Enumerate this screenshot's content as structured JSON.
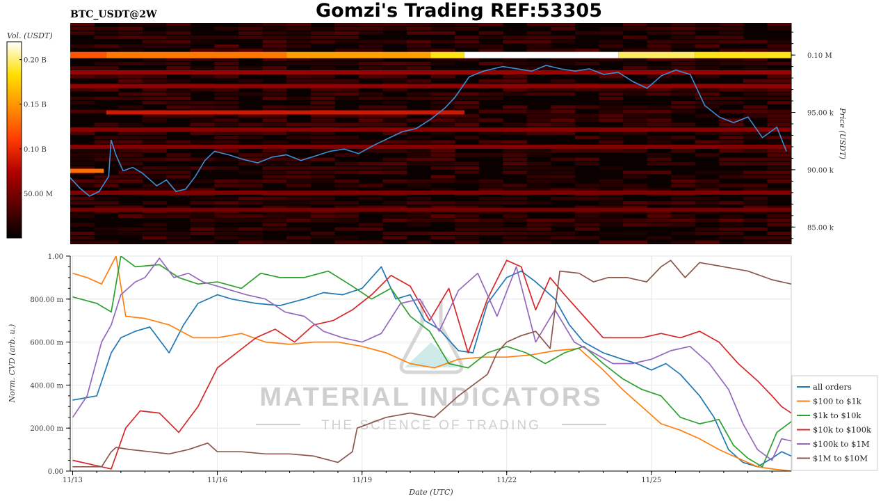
{
  "title": "Gomzi's Trading REF:53305",
  "symbol_label": "BTC_USDT@2W",
  "watermark": {
    "main": "MATERIAL INDICATORS",
    "sub": "THE SCIENCE OF TRADING"
  },
  "colors": {
    "heatmap_base": "#000000",
    "price_line": "#3b8fd6",
    "colorbar_stops": [
      "#000000",
      "#5a0000",
      "#b00000",
      "#ff3a00",
      "#ff9000",
      "#ffe000",
      "#ffffff"
    ]
  },
  "chart_data": [
    {
      "type": "heatmap",
      "colorbar_label": "Vol. (USDT)",
      "colorbar_ticks": [
        "0.20 B",
        "0.15 B",
        "0.10 B",
        "50.00 M"
      ],
      "colorbar_values": [
        200000000,
        150000000,
        100000000,
        50000000
      ],
      "colorbar_range": [
        0,
        220000000
      ],
      "ylabel": "Price (USDT)",
      "ylim": [
        83500,
        102800
      ],
      "y_ticks": [
        "0.10 M",
        "95.00 k",
        "90.00 k",
        "85.00 k"
      ],
      "y_tick_values": [
        100000,
        95000,
        90000,
        85000
      ],
      "xlim": [
        0,
        15
      ],
      "bands": [
        {
          "price": 100000,
          "segments": [
            [
              0,
              0.75,
              0.55
            ],
            [
              0.75,
              4.5,
              0.62
            ],
            [
              4.5,
              7.5,
              0.7
            ],
            [
              7.5,
              8.2,
              0.85
            ],
            [
              8.2,
              11.4,
              1.0
            ],
            [
              11.4,
              13.0,
              0.9
            ],
            [
              13.0,
              15,
              0.85
            ]
          ]
        },
        {
          "price": 95000,
          "segments": [
            [
              0.75,
              8.2,
              0.4
            ]
          ]
        },
        {
          "price": 89900,
          "segments": [
            [
              0,
              0.7,
              0.6
            ]
          ]
        },
        {
          "price": 98500,
          "segments": [
            [
              0,
              15,
              0.3
            ]
          ]
        },
        {
          "price": 97300,
          "segments": [
            [
              0,
              15,
              0.28
            ]
          ]
        },
        {
          "price": 93500,
          "segments": [
            [
              0,
              15,
              0.26
            ]
          ]
        },
        {
          "price": 92000,
          "segments": [
            [
              0,
              15,
              0.25
            ]
          ]
        },
        {
          "price": 88000,
          "segments": [
            [
              0,
              15,
              0.24
            ]
          ]
        },
        {
          "price": 86500,
          "segments": [
            [
              0,
              15,
              0.22
            ]
          ]
        }
      ],
      "price_series": {
        "name": "price",
        "x": [
          0,
          0.2,
          0.4,
          0.6,
          0.8,
          0.85,
          0.95,
          1.1,
          1.3,
          1.5,
          1.8,
          2.0,
          2.2,
          2.4,
          2.6,
          2.8,
          3.0,
          3.3,
          3.6,
          3.9,
          4.2,
          4.5,
          4.8,
          5.1,
          5.4,
          5.7,
          6.0,
          6.3,
          6.6,
          6.9,
          7.2,
          7.5,
          7.8,
          8.0,
          8.3,
          8.6,
          9.0,
          9.3,
          9.6,
          9.9,
          10.2,
          10.5,
          10.8,
          11.1,
          11.4,
          11.7,
          12.0,
          12.3,
          12.6,
          12.9,
          13.2,
          13.5,
          13.8,
          14.1,
          14.4,
          14.7,
          14.9
        ],
        "y": [
          89300,
          88400,
          87700,
          88100,
          89400,
          92600,
          91300,
          89900,
          90200,
          89700,
          88600,
          89100,
          88100,
          88300,
          89400,
          90800,
          91600,
          91300,
          90900,
          90600,
          91100,
          91300,
          90800,
          91200,
          91600,
          91800,
          91400,
          92100,
          92700,
          93300,
          93600,
          94400,
          95400,
          96300,
          98100,
          98600,
          99000,
          98800,
          98600,
          99100,
          98800,
          98600,
          98800,
          98300,
          98500,
          97700,
          97100,
          98200,
          98700,
          98300,
          95600,
          94600,
          94100,
          94600,
          92800,
          93700,
          91600
        ]
      }
    },
    {
      "type": "line",
      "ylabel": "Norm. CVD (arb. u.)",
      "xlabel": "Date (UTC)",
      "ylim": [
        0,
        1
      ],
      "y_ticks": [
        "1.00",
        "800.00 m",
        "600.00 m",
        "400.00 m",
        "200.00 m",
        "0.00"
      ],
      "y_tick_values": [
        1.0,
        0.8,
        0.6,
        0.4,
        0.2,
        0.0
      ],
      "x_ticks": [
        "11/13",
        "11/16",
        "11/19",
        "11/22",
        "11/25"
      ],
      "x_tick_values": [
        0,
        3,
        6,
        9,
        12
      ],
      "xlim": [
        -0.05,
        14.9
      ],
      "grid": true,
      "legend_position": "right",
      "series": [
        {
          "name": "all orders",
          "color": "#1f77b4",
          "x": [
            0,
            0.5,
            0.8,
            1.0,
            1.3,
            1.6,
            2.0,
            2.3,
            2.6,
            3.0,
            3.3,
            3.8,
            4.3,
            4.8,
            5.2,
            5.6,
            6.0,
            6.4,
            6.7,
            7.0,
            7.3,
            7.6,
            8.0,
            8.3,
            8.6,
            9.0,
            9.3,
            9.6,
            10.0,
            10.3,
            10.6,
            11.0,
            11.4,
            11.7,
            12.0,
            12.3,
            12.6,
            13.0,
            13.3,
            13.6,
            13.9,
            14.2,
            14.5,
            14.7,
            14.9
          ],
          "y": [
            0.33,
            0.35,
            0.55,
            0.62,
            0.65,
            0.67,
            0.55,
            0.68,
            0.78,
            0.82,
            0.8,
            0.78,
            0.77,
            0.8,
            0.83,
            0.82,
            0.85,
            0.95,
            0.8,
            0.82,
            0.7,
            0.66,
            0.56,
            0.55,
            0.78,
            0.9,
            0.93,
            0.88,
            0.8,
            0.68,
            0.6,
            0.55,
            0.52,
            0.5,
            0.47,
            0.5,
            0.45,
            0.35,
            0.25,
            0.1,
            0.04,
            0.02,
            0.06,
            0.09,
            0.07
          ]
        },
        {
          "name": "$100 to $1k",
          "color": "#ff7f0e",
          "x": [
            0,
            0.3,
            0.6,
            0.9,
            1.1,
            1.5,
            2.0,
            2.5,
            3.0,
            3.5,
            4.0,
            4.5,
            5.0,
            5.5,
            6.0,
            6.5,
            7.0,
            7.5,
            8.0,
            8.5,
            9.0,
            9.5,
            10.0,
            10.5,
            11.0,
            11.4,
            11.8,
            12.2,
            12.6,
            13.0,
            13.4,
            13.8,
            14.2,
            14.5,
            14.9
          ],
          "y": [
            0.92,
            0.9,
            0.87,
            1.0,
            0.72,
            0.71,
            0.68,
            0.62,
            0.62,
            0.64,
            0.6,
            0.59,
            0.6,
            0.6,
            0.58,
            0.55,
            0.5,
            0.48,
            0.52,
            0.53,
            0.53,
            0.54,
            0.56,
            0.57,
            0.47,
            0.38,
            0.3,
            0.22,
            0.19,
            0.15,
            0.1,
            0.06,
            0.02,
            0.01,
            0.0
          ]
        },
        {
          "name": "$1k to $10k",
          "color": "#2ca02c",
          "x": [
            0,
            0.5,
            0.8,
            1.0,
            1.3,
            1.8,
            2.2,
            2.6,
            3.0,
            3.5,
            3.9,
            4.3,
            4.8,
            5.3,
            5.8,
            6.2,
            6.6,
            7.0,
            7.4,
            7.8,
            8.2,
            8.6,
            9.0,
            9.4,
            9.8,
            10.2,
            10.6,
            11.0,
            11.4,
            11.8,
            12.2,
            12.6,
            13.0,
            13.4,
            13.7,
            14.0,
            14.3,
            14.6,
            14.9
          ],
          "y": [
            0.81,
            0.78,
            0.74,
            1.0,
            0.95,
            0.96,
            0.9,
            0.87,
            0.88,
            0.85,
            0.92,
            0.9,
            0.9,
            0.93,
            0.86,
            0.8,
            0.85,
            0.72,
            0.65,
            0.5,
            0.48,
            0.55,
            0.58,
            0.55,
            0.5,
            0.55,
            0.58,
            0.5,
            0.43,
            0.38,
            0.35,
            0.25,
            0.22,
            0.24,
            0.12,
            0.06,
            0.02,
            0.18,
            0.23
          ]
        },
        {
          "name": "$10k to $100k",
          "color": "#d62728",
          "x": [
            0,
            0.4,
            0.8,
            1.1,
            1.4,
            1.8,
            2.2,
            2.6,
            3.0,
            3.4,
            3.8,
            4.2,
            4.6,
            5.0,
            5.4,
            5.8,
            6.2,
            6.6,
            7.0,
            7.4,
            7.8,
            8.2,
            8.6,
            9.0,
            9.3,
            9.6,
            9.9,
            10.2,
            10.6,
            11.0,
            11.4,
            11.8,
            12.2,
            12.6,
            13.0,
            13.4,
            13.8,
            14.2,
            14.5,
            14.7,
            14.9
          ],
          "y": [
            0.05,
            0.03,
            0.01,
            0.2,
            0.28,
            0.27,
            0.18,
            0.3,
            0.48,
            0.55,
            0.62,
            0.66,
            0.6,
            0.68,
            0.7,
            0.75,
            0.82,
            0.91,
            0.86,
            0.7,
            0.85,
            0.55,
            0.8,
            0.98,
            0.95,
            0.75,
            0.9,
            0.82,
            0.72,
            0.62,
            0.62,
            0.62,
            0.64,
            0.62,
            0.65,
            0.6,
            0.5,
            0.42,
            0.35,
            0.3,
            0.27
          ]
        },
        {
          "name": "$100k to $1M",
          "color": "#9467bd",
          "x": [
            0,
            0.3,
            0.6,
            0.8,
            1.0,
            1.3,
            1.5,
            1.8,
            2.1,
            2.4,
            2.7,
            3.0,
            3.3,
            3.6,
            4.0,
            4.4,
            4.8,
            5.2,
            5.6,
            6.0,
            6.4,
            6.8,
            7.2,
            7.6,
            8.0,
            8.4,
            8.8,
            9.2,
            9.6,
            10.0,
            10.4,
            10.8,
            11.2,
            11.6,
            12.0,
            12.4,
            12.8,
            13.2,
            13.6,
            13.9,
            14.2,
            14.5,
            14.7,
            14.9
          ],
          "y": [
            0.25,
            0.35,
            0.6,
            0.68,
            0.82,
            0.88,
            0.9,
            0.99,
            0.9,
            0.92,
            0.88,
            0.86,
            0.84,
            0.82,
            0.8,
            0.74,
            0.72,
            0.65,
            0.62,
            0.6,
            0.64,
            0.78,
            0.8,
            0.65,
            0.84,
            0.92,
            0.72,
            0.95,
            0.6,
            0.75,
            0.6,
            0.55,
            0.5,
            0.5,
            0.52,
            0.56,
            0.58,
            0.5,
            0.38,
            0.22,
            0.1,
            0.05,
            0.15,
            0.14
          ]
        },
        {
          "name": "$1M to $10M",
          "color": "#8c564b",
          "x": [
            0,
            0.6,
            0.8,
            0.9,
            1.2,
            1.6,
            2.0,
            2.4,
            2.8,
            3.0,
            3.5,
            4.0,
            4.5,
            5.0,
            5.5,
            5.8,
            5.9,
            6.5,
            7.0,
            7.5,
            8.0,
            8.3,
            8.6,
            8.8,
            9.0,
            9.3,
            9.6,
            9.9,
            10.1,
            10.5,
            10.8,
            11.1,
            11.5,
            11.9,
            12.2,
            12.4,
            12.7,
            13.0,
            13.5,
            14.0,
            14.5,
            14.9
          ],
          "y": [
            0.02,
            0.02,
            0.09,
            0.11,
            0.1,
            0.09,
            0.08,
            0.1,
            0.13,
            0.09,
            0.09,
            0.08,
            0.08,
            0.07,
            0.04,
            0.09,
            0.2,
            0.25,
            0.27,
            0.25,
            0.35,
            0.4,
            0.45,
            0.55,
            0.6,
            0.63,
            0.65,
            0.57,
            0.93,
            0.92,
            0.88,
            0.9,
            0.9,
            0.88,
            0.95,
            0.98,
            0.9,
            0.97,
            0.95,
            0.93,
            0.89,
            0.87
          ]
        }
      ]
    }
  ]
}
